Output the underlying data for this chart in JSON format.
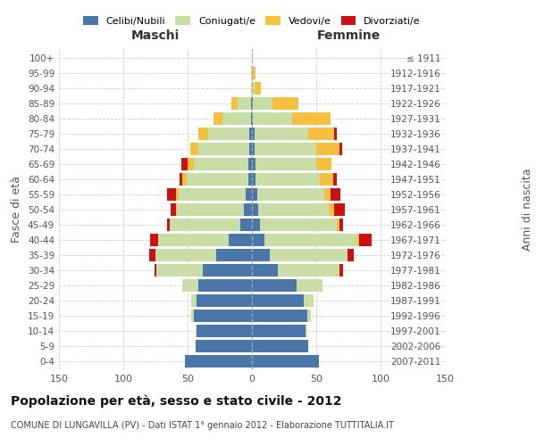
{
  "age_groups": [
    "0-4",
    "5-9",
    "10-14",
    "15-19",
    "20-24",
    "25-29",
    "30-34",
    "35-39",
    "40-44",
    "45-49",
    "50-54",
    "55-59",
    "60-64",
    "65-69",
    "70-74",
    "75-79",
    "80-84",
    "85-89",
    "90-94",
    "95-99",
    "100+"
  ],
  "birth_years": [
    "2007-2011",
    "2002-2006",
    "1997-2001",
    "1992-1996",
    "1987-1991",
    "1982-1986",
    "1977-1981",
    "1972-1976",
    "1967-1971",
    "1962-1966",
    "1957-1961",
    "1952-1956",
    "1947-1951",
    "1942-1946",
    "1937-1941",
    "1932-1936",
    "1927-1931",
    "1922-1926",
    "1917-1921",
    "1912-1916",
    "≤ 1911"
  ],
  "male": {
    "celibi": [
      52,
      44,
      43,
      45,
      43,
      42,
      38,
      28,
      18,
      9,
      6,
      5,
      3,
      3,
      2,
      2,
      1,
      1,
      0,
      0,
      0
    ],
    "coniugati": [
      0,
      0,
      1,
      2,
      4,
      12,
      36,
      47,
      55,
      55,
      52,
      52,
      48,
      42,
      40,
      32,
      22,
      10,
      1,
      1,
      0
    ],
    "vedovi": [
      0,
      0,
      0,
      0,
      0,
      0,
      0,
      0,
      0,
      0,
      1,
      2,
      3,
      5,
      6,
      8,
      7,
      5,
      0,
      0,
      0
    ],
    "divorziati": [
      0,
      0,
      0,
      0,
      0,
      0,
      2,
      5,
      6,
      2,
      4,
      7,
      2,
      5,
      0,
      0,
      0,
      0,
      0,
      0,
      0
    ]
  },
  "female": {
    "nubili": [
      52,
      44,
      42,
      43,
      40,
      35,
      20,
      14,
      10,
      6,
      5,
      4,
      3,
      3,
      2,
      2,
      1,
      1,
      0,
      0,
      0
    ],
    "coniugate": [
      0,
      0,
      1,
      3,
      8,
      20,
      48,
      60,
      72,
      60,
      55,
      52,
      50,
      47,
      48,
      42,
      30,
      15,
      2,
      1,
      0
    ],
    "vedove": [
      0,
      0,
      0,
      0,
      0,
      0,
      0,
      0,
      1,
      2,
      4,
      5,
      10,
      12,
      18,
      20,
      30,
      20,
      5,
      2,
      0
    ],
    "divorziate": [
      0,
      0,
      0,
      0,
      0,
      0,
      3,
      5,
      10,
      3,
      8,
      8,
      3,
      0,
      2,
      2,
      0,
      0,
      0,
      0,
      0
    ]
  },
  "colors": {
    "celibi": "#4a76a8",
    "coniugati": "#c9dea7",
    "vedovi": "#f5c040",
    "divorziati": "#cc1111"
  },
  "xlim": 150,
  "title": "Popolazione per età, sesso e stato civile - 2012",
  "subtitle": "COMUNE DI LUNGAVILLA (PV) - Dati ISTAT 1° gennaio 2012 - Elaborazione TUTTITALIA.IT",
  "ylabel": "Fasce di età",
  "ylabel2": "Anni di nascita",
  "bg_color": "#ffffff",
  "grid_color": "#cccccc"
}
